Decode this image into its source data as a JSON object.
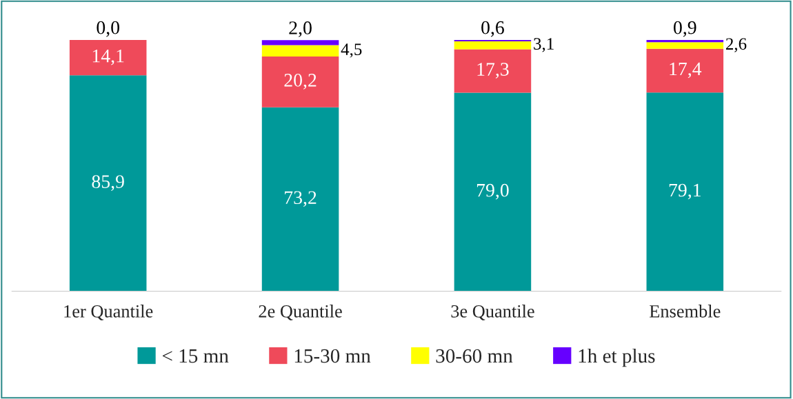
{
  "chart_data": {
    "type": "bar",
    "stacked": true,
    "categories": [
      "1er Quantile",
      "2e Quantile",
      "3e Quantile",
      "Ensemble"
    ],
    "ylim": [
      0,
      100
    ],
    "tick_labels": "x",
    "grid": false,
    "legend": "bottom",
    "series": [
      {
        "name": "< 15 mn",
        "color": "#009999",
        "values": [
          85.9,
          73.2,
          79.0,
          79.1
        ],
        "value_labels": [
          "85,9",
          "73,2",
          "79,0",
          "79,1"
        ]
      },
      {
        "name": "15-30 mn",
        "color": "#ef4a5a",
        "values": [
          14.1,
          20.2,
          17.3,
          17.4
        ],
        "value_labels": [
          "14,1",
          "20,2",
          "17,3",
          "17,4"
        ]
      },
      {
        "name": "30-60 mn",
        "color": "#ffff00",
        "values": [
          0.0,
          4.5,
          3.1,
          2.6
        ],
        "value_labels": [
          null,
          "4,5",
          "3,1",
          "2,6"
        ]
      },
      {
        "name": "1h et plus",
        "color": "#6600ff",
        "values": [
          0.0,
          2.0,
          0.6,
          0.9
        ],
        "value_labels": [
          "0,0",
          "2,0",
          "0,6",
          "0,9"
        ]
      }
    ]
  }
}
